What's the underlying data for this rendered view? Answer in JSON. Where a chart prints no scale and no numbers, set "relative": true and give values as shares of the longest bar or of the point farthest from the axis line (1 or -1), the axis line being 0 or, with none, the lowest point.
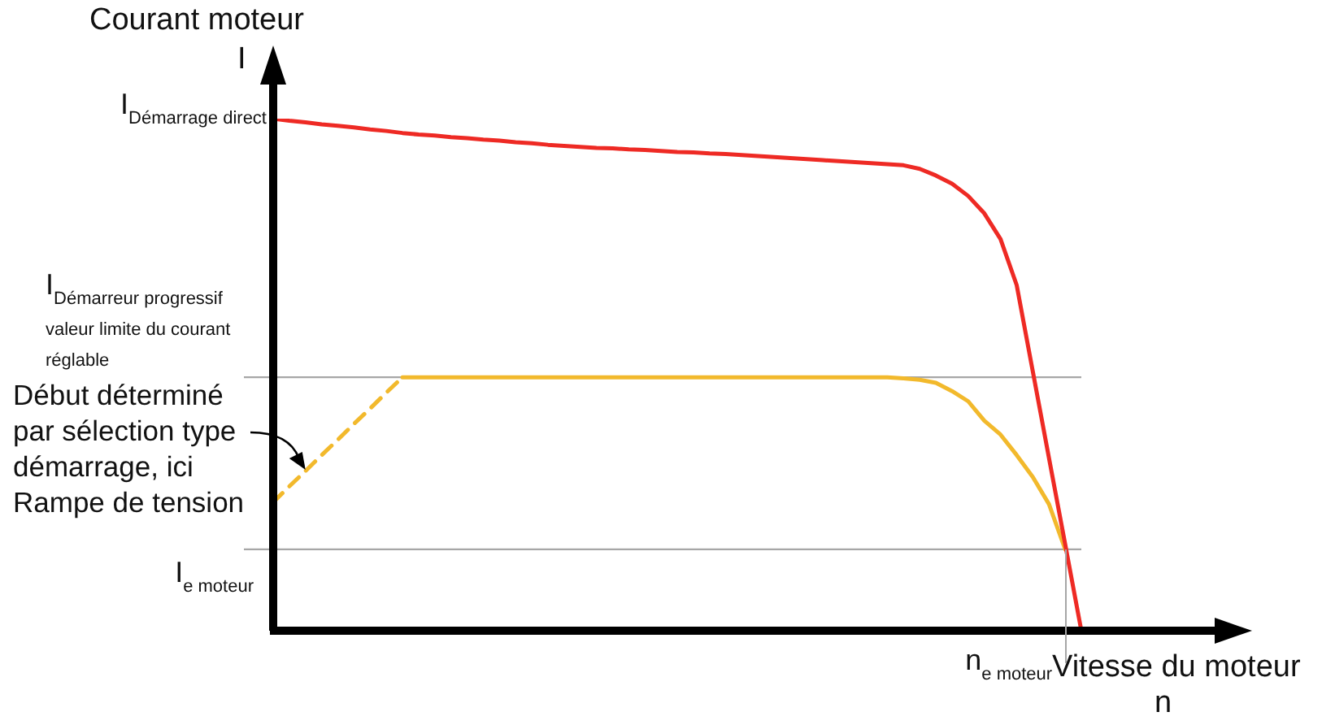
{
  "chart_data": {
    "type": "line",
    "relative": true,
    "marker": "none",
    "ylabel": "Courant moteur",
    "xlabel": "Vitesse du moteur",
    "categories": [
      null,
      null,
      null,
      null,
      null,
      null,
      null,
      null,
      null,
      null,
      null,
      null,
      null,
      null,
      null,
      null,
      null,
      null,
      null,
      null,
      null,
      null,
      null,
      null,
      null,
      null,
      null,
      null,
      null,
      null,
      null,
      null,
      null,
      null,
      null,
      null,
      null,
      null,
      null,
      null,
      null,
      null,
      null,
      null,
      null,
      null,
      null,
      null,
      null,
      null,
      null
    ],
    "series": [
      {
        "color": "#ee2a24",
        "values": [
          1,
          0.996,
          0.993,
          0.989,
          0.986,
          0.983,
          0.979,
          0.976,
          0.972,
          0.969,
          0.967,
          0.964,
          0.962,
          0.959,
          0.957,
          0.954,
          0.952,
          0.949,
          0.947,
          0.945,
          0.943,
          0.942,
          0.94,
          0.939,
          0.937,
          0.935,
          0.934,
          0.932,
          0.931,
          0.929,
          0.927,
          0.925,
          0.923,
          0.921,
          0.919,
          0.917,
          0.915,
          0.913,
          0.911,
          0.909,
          0.902,
          0.889,
          0.873,
          0.849,
          0.815,
          0.765,
          0.675,
          0.506,
          0.337,
          0.169,
          0
        ]
      },
      {
        "color": "#f2b92c",
        "line_style": "dashed",
        "values": [
          0.251,
          0.282,
          0.312,
          0.343,
          0.373,
          0.404,
          0.434,
          0.465,
          0.495,
          null,
          null,
          null,
          null,
          null,
          null,
          null,
          null,
          null,
          null,
          null,
          null,
          null,
          null,
          null,
          null,
          null,
          null,
          null,
          null,
          null,
          null,
          null,
          null,
          null,
          null,
          null,
          null,
          null,
          null,
          null,
          null,
          null,
          null,
          null,
          null,
          null,
          null,
          null,
          null,
          null,
          null
        ]
      },
      {
        "color": "#f2b92c",
        "line_style": "solid",
        "values": [
          null,
          null,
          null,
          null,
          null,
          null,
          null,
          null,
          0.495,
          0.495,
          0.495,
          0.495,
          0.495,
          0.495,
          0.495,
          0.495,
          0.495,
          0.495,
          0.495,
          0.495,
          0.495,
          0.495,
          0.495,
          0.495,
          0.495,
          0.495,
          0.495,
          0.495,
          0.495,
          0.495,
          0.495,
          0.495,
          0.495,
          0.495,
          0.495,
          0.495,
          0.495,
          0.495,
          0.495,
          0.493,
          0.49,
          0.484,
          0.468,
          0.448,
          0.41,
          0.383,
          0.343,
          0.3,
          0.247,
          0.159,
          null
        ]
      }
    ],
    "ref_lines": [
      {
        "axis": "y",
        "value": 0.495,
        "label": "I$_{Démarreur progressif valeur limite du courant réglable}$",
        "color": "#a6a6a6"
      },
      {
        "axis": "y",
        "value": 0.159,
        "label": "I$_{e moteur}$",
        "color": "#a6a6a6"
      }
    ],
    "annotations": [
      "I$_{Démarrage direct}$",
      "Début déterminé par sélection type démarrage, ici Rampe de tension",
      "I",
      "n",
      "n$_{e moteur}$"
    ]
  }
}
